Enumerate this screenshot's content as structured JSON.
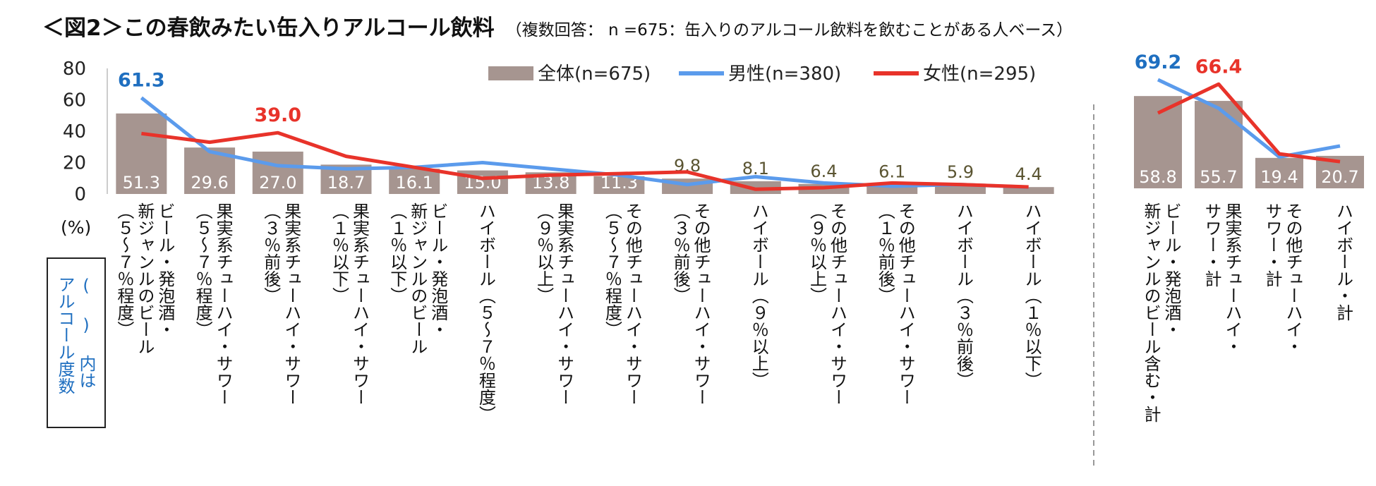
{
  "title": {
    "main": "＜図2＞この春飲みたい缶入りアルコール飲料",
    "sub": "（複数回答： n =675：缶入りのアルコール飲料を飲むことがある人ベース）"
  },
  "axis": {
    "unit": "(%)"
  },
  "note": "( ) 内は\nアルコール度数",
  "colors": {
    "overall": "#a69590",
    "male": "#5b9bec",
    "female": "#e8332a",
    "male_label": "#1f6fc0",
    "female_label": "#e8332a"
  },
  "chart_data": [
    {
      "type": "bar",
      "ylim": [
        0,
        80
      ],
      "yticks": [
        0,
        20,
        40,
        60,
        80
      ],
      "categories": [
        "ビール・発泡酒・\n新ジャンルのビール\n（５～７％程度）",
        "果実系チューハイ・サワー\n（５～７％程度）",
        "果実系チューハイ・サワー\n（３％前後）",
        "果実系チューハイ・サワー\n（１％以下）",
        "ビール・発泡酒・\n新ジャンルのビール\n（１％以下）",
        "ハイボール（５～７％程度）",
        "果実系チューハイ・サワー\n（９％以上）",
        "その他チューハイ・サワー\n（５～７％程度）",
        "その他チューハイ・サワー\n（３％前後）",
        "ハイボール（９％以上）",
        "その他チューハイ・サワー\n（９％以上）",
        "その他チューハイ・サワー\n（１％前後）",
        "ハイボール（３％前後）",
        "ハイボール（１％以下）"
      ],
      "series": [
        {
          "name": "全体(n=675)",
          "kind": "bar",
          "values": [
            51.3,
            29.6,
            27.0,
            18.7,
            16.1,
            15.0,
            13.8,
            11.3,
            9.8,
            8.1,
            6.4,
            6.1,
            5.9,
            4.4
          ]
        },
        {
          "name": "男性(n=380)",
          "kind": "line",
          "values": [
            61.3,
            27.0,
            18.0,
            16.0,
            17.0,
            20.0,
            16.0,
            12.0,
            6.0,
            11.0,
            7.0,
            5.0,
            6.0,
            4.4
          ]
        },
        {
          "name": "女性(n=295)",
          "kind": "line",
          "values": [
            38.5,
            33.0,
            39.0,
            24.0,
            17.0,
            10.0,
            12.0,
            13.0,
            14.0,
            3.0,
            4.0,
            7.0,
            6.0,
            4.5
          ]
        }
      ],
      "peak_labels": {
        "male": "61.3",
        "female": "39.0"
      }
    },
    {
      "type": "bar",
      "ylim": [
        0,
        80
      ],
      "categories": [
        "ビール・発泡酒・\n新ジャンルのビール含む・計",
        "果実系チューハイ・\nサワー・計",
        "その他チューハイ・\nサワー・計",
        "ハイボール・計"
      ],
      "series": [
        {
          "name": "全体(n=675)",
          "kind": "bar",
          "values": [
            58.8,
            55.7,
            19.4,
            20.7
          ]
        },
        {
          "name": "男性(n=380)",
          "kind": "line",
          "values": [
            69.2,
            51.0,
            20.0,
            27.0
          ]
        },
        {
          "name": "女性(n=295)",
          "kind": "line",
          "values": [
            48.0,
            66.4,
            22.0,
            17.0
          ]
        }
      ],
      "peak_labels": {
        "male": "69.2",
        "female": "66.4"
      }
    }
  ]
}
